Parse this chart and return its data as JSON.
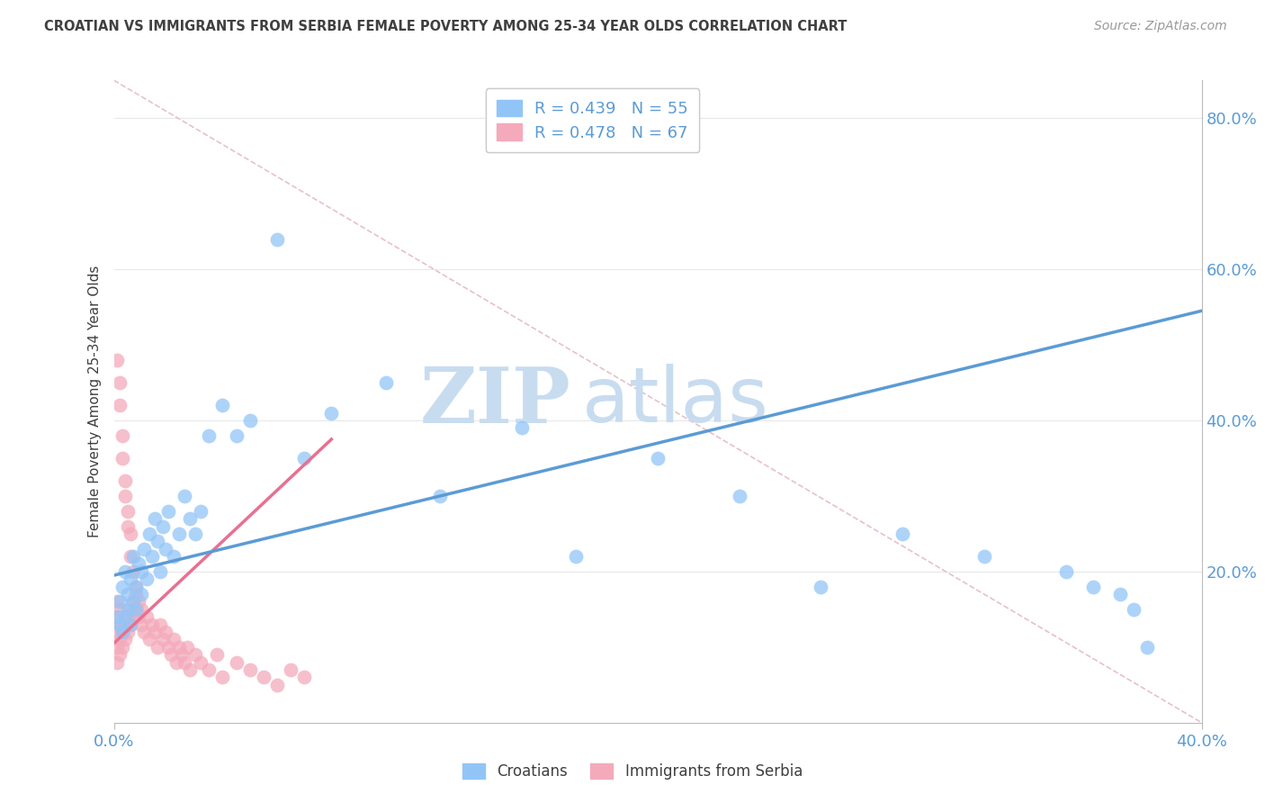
{
  "title": "CROATIAN VS IMMIGRANTS FROM SERBIA FEMALE POVERTY AMONG 25-34 YEAR OLDS CORRELATION CHART",
  "source": "Source: ZipAtlas.com",
  "ylabel": "Female Poverty Among 25-34 Year Olds",
  "xmin": 0.0,
  "xmax": 0.4,
  "ymin": 0.0,
  "ymax": 0.85,
  "R_blue": 0.439,
  "N_blue": 55,
  "R_pink": 0.478,
  "N_pink": 67,
  "blue_color": "#92C5F7",
  "pink_color": "#F4AABB",
  "blue_line_color": "#5B9BD5",
  "pink_line_color": "#E87090",
  "diag_color": "#E8C0C8",
  "title_color": "#404040",
  "source_color": "#999999",
  "tick_color": "#5B9BD5",
  "watermark_zip": "ZIP",
  "watermark_atlas": "atlas",
  "watermark_color": "#C8DCF0",
  "legend_label_blue": "Croatians",
  "legend_label_pink": "Immigrants from Serbia",
  "background_color": "#FFFFFF",
  "grid_color": "#E8E8E8",
  "blue_x": [
    0.001,
    0.002,
    0.002,
    0.003,
    0.003,
    0.004,
    0.004,
    0.005,
    0.005,
    0.006,
    0.006,
    0.007,
    0.007,
    0.008,
    0.008,
    0.009,
    0.01,
    0.01,
    0.011,
    0.012,
    0.013,
    0.014,
    0.015,
    0.016,
    0.017,
    0.018,
    0.019,
    0.02,
    0.022,
    0.024,
    0.026,
    0.028,
    0.03,
    0.032,
    0.035,
    0.04,
    0.045,
    0.05,
    0.06,
    0.07,
    0.08,
    0.1,
    0.12,
    0.15,
    0.17,
    0.2,
    0.23,
    0.26,
    0.29,
    0.32,
    0.35,
    0.36,
    0.37,
    0.375,
    0.38
  ],
  "blue_y": [
    0.14,
    0.13,
    0.16,
    0.12,
    0.18,
    0.14,
    0.2,
    0.15,
    0.17,
    0.13,
    0.19,
    0.16,
    0.22,
    0.18,
    0.15,
    0.21,
    0.2,
    0.17,
    0.23,
    0.19,
    0.25,
    0.22,
    0.27,
    0.24,
    0.2,
    0.26,
    0.23,
    0.28,
    0.22,
    0.25,
    0.3,
    0.27,
    0.25,
    0.28,
    0.38,
    0.42,
    0.38,
    0.4,
    0.64,
    0.35,
    0.41,
    0.45,
    0.3,
    0.39,
    0.22,
    0.35,
    0.3,
    0.18,
    0.25,
    0.22,
    0.2,
    0.18,
    0.17,
    0.15,
    0.1
  ],
  "pink_x": [
    0.001,
    0.001,
    0.001,
    0.001,
    0.001,
    0.001,
    0.002,
    0.002,
    0.002,
    0.002,
    0.002,
    0.002,
    0.003,
    0.003,
    0.003,
    0.003,
    0.004,
    0.004,
    0.004,
    0.004,
    0.005,
    0.005,
    0.005,
    0.005,
    0.006,
    0.006,
    0.006,
    0.006,
    0.007,
    0.007,
    0.007,
    0.008,
    0.008,
    0.008,
    0.009,
    0.009,
    0.01,
    0.01,
    0.011,
    0.012,
    0.013,
    0.014,
    0.015,
    0.016,
    0.017,
    0.018,
    0.019,
    0.02,
    0.021,
    0.022,
    0.023,
    0.024,
    0.025,
    0.026,
    0.027,
    0.028,
    0.03,
    0.032,
    0.035,
    0.038,
    0.04,
    0.045,
    0.05,
    0.055,
    0.06,
    0.065,
    0.07
  ],
  "pink_y": [
    0.08,
    0.1,
    0.12,
    0.14,
    0.16,
    0.48,
    0.09,
    0.11,
    0.13,
    0.15,
    0.45,
    0.42,
    0.1,
    0.12,
    0.38,
    0.35,
    0.11,
    0.13,
    0.32,
    0.3,
    0.12,
    0.14,
    0.28,
    0.26,
    0.13,
    0.15,
    0.25,
    0.22,
    0.14,
    0.16,
    0.2,
    0.15,
    0.17,
    0.18,
    0.14,
    0.16,
    0.15,
    0.13,
    0.12,
    0.14,
    0.11,
    0.13,
    0.12,
    0.1,
    0.13,
    0.11,
    0.12,
    0.1,
    0.09,
    0.11,
    0.08,
    0.1,
    0.09,
    0.08,
    0.1,
    0.07,
    0.09,
    0.08,
    0.07,
    0.09,
    0.06,
    0.08,
    0.07,
    0.06,
    0.05,
    0.07,
    0.06
  ],
  "blue_line_x": [
    0.0,
    0.4
  ],
  "blue_line_y": [
    0.195,
    0.545
  ],
  "pink_line_x": [
    0.0,
    0.08
  ],
  "pink_line_y": [
    0.105,
    0.375
  ],
  "diag_line_x": [
    0.0,
    0.4
  ],
  "diag_line_y": [
    0.85,
    0.0
  ]
}
